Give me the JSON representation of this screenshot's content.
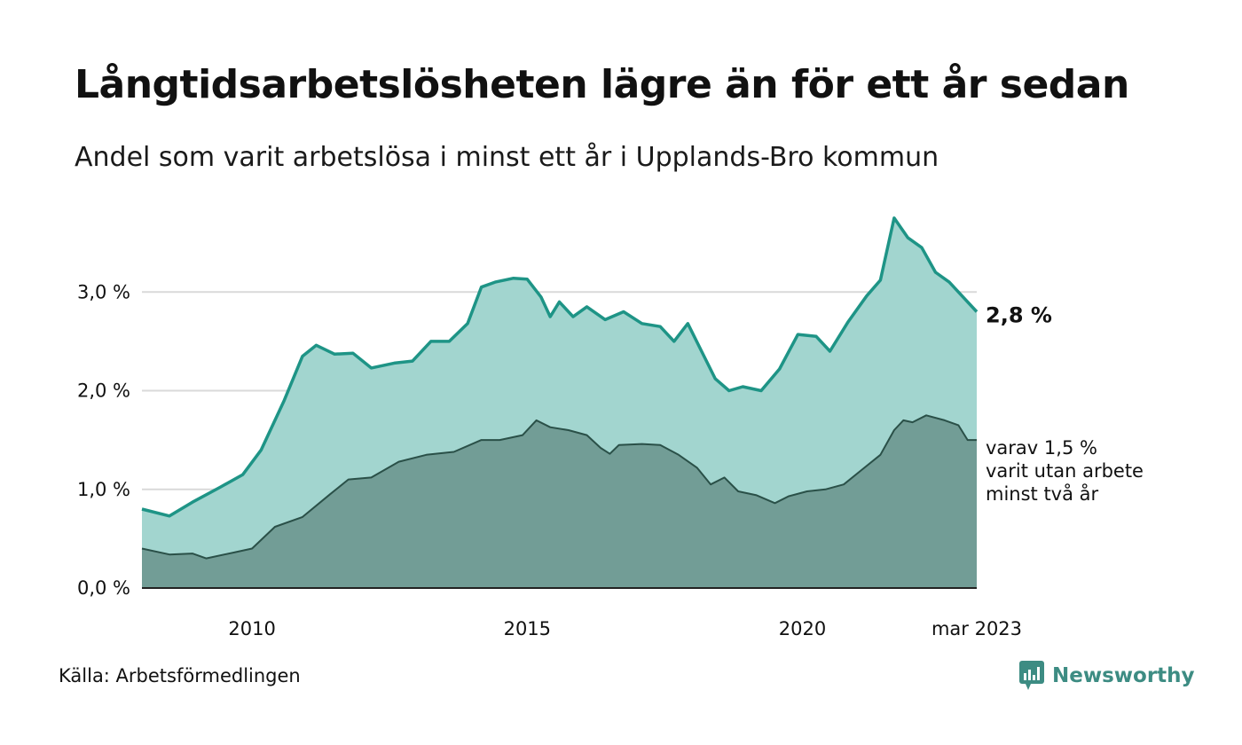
{
  "title": "Långtidsarbetslösheten lägre än för ett år sedan",
  "subtitle": "Andel som varit arbetslösa i minst ett år i Upplands-Bro kommun",
  "source": "Källa: Arbetsförmedlingen",
  "brand": "Newsworthy",
  "colors": {
    "total_line": "#1e9486",
    "total_fill": "#a2d5cf",
    "twoyear_line": "#2a5048",
    "twoyear_fill": "#729d96",
    "grid": "#d9d9d9",
    "brand": "#3d8c83"
  },
  "annotations": {
    "last_total_label": "2,8 %",
    "last_twoyear_lines": [
      "varav 1,5 %",
      "varit utan arbete",
      "minst två år"
    ]
  },
  "chart_data": {
    "type": "area",
    "xlim": [
      "2008-01",
      "2023-03"
    ],
    "ylim": [
      0,
      4
    ],
    "ytick_labels": [
      "0,0 %",
      "1,0 %",
      "2,0 %",
      "3,0 %"
    ],
    "yticks": [
      0,
      1,
      2,
      3
    ],
    "xtick_labels": [
      "2010",
      "2015",
      "2020",
      "mar 2023"
    ],
    "xticks": [
      "2010-01",
      "2015-01",
      "2020-01",
      "2023-03"
    ],
    "grid": true,
    "series": [
      {
        "key": "total",
        "points": [
          [
            "2008-01",
            0.8
          ],
          [
            "2008-07",
            0.73
          ],
          [
            "2008-12",
            0.87
          ],
          [
            "2009-06",
            1.02
          ],
          [
            "2009-11",
            1.15
          ],
          [
            "2010-03",
            1.4
          ],
          [
            "2010-08",
            1.9
          ],
          [
            "2010-12",
            2.35
          ],
          [
            "2011-03",
            2.46
          ],
          [
            "2011-07",
            2.37
          ],
          [
            "2011-11",
            2.38
          ],
          [
            "2012-03",
            2.23
          ],
          [
            "2012-08",
            2.28
          ],
          [
            "2012-12",
            2.3
          ],
          [
            "2013-04",
            2.5
          ],
          [
            "2013-08",
            2.5
          ],
          [
            "2013-12",
            2.68
          ],
          [
            "2014-03",
            3.05
          ],
          [
            "2014-06",
            3.1
          ],
          [
            "2014-10",
            3.14
          ],
          [
            "2015-01",
            3.13
          ],
          [
            "2015-04",
            2.95
          ],
          [
            "2015-06",
            2.75
          ],
          [
            "2015-08",
            2.9
          ],
          [
            "2015-11",
            2.75
          ],
          [
            "2016-02",
            2.85
          ],
          [
            "2016-06",
            2.72
          ],
          [
            "2016-10",
            2.8
          ],
          [
            "2017-02",
            2.68
          ],
          [
            "2017-06",
            2.65
          ],
          [
            "2017-09",
            2.5
          ],
          [
            "2017-12",
            2.68
          ],
          [
            "2018-03",
            2.4
          ],
          [
            "2018-06",
            2.12
          ],
          [
            "2018-09",
            2.0
          ],
          [
            "2018-12",
            2.04
          ],
          [
            "2019-04",
            2.0
          ],
          [
            "2019-08",
            2.22
          ],
          [
            "2019-12",
            2.57
          ],
          [
            "2020-04",
            2.55
          ],
          [
            "2020-07",
            2.4
          ],
          [
            "2020-11",
            2.7
          ],
          [
            "2021-03",
            2.96
          ],
          [
            "2021-06",
            3.12
          ],
          [
            "2021-09",
            3.75
          ],
          [
            "2021-12",
            3.55
          ],
          [
            "2022-03",
            3.45
          ],
          [
            "2022-06",
            3.2
          ],
          [
            "2022-09",
            3.1
          ],
          [
            "2022-12",
            2.95
          ],
          [
            "2023-03",
            2.8
          ]
        ]
      },
      {
        "key": "two_years",
        "points": [
          [
            "2008-01",
            0.4
          ],
          [
            "2008-07",
            0.34
          ],
          [
            "2008-12",
            0.35
          ],
          [
            "2009-03",
            0.3
          ],
          [
            "2009-09",
            0.36
          ],
          [
            "2010-01",
            0.4
          ],
          [
            "2010-06",
            0.62
          ],
          [
            "2010-12",
            0.72
          ],
          [
            "2011-06",
            0.95
          ],
          [
            "2011-10",
            1.1
          ],
          [
            "2012-03",
            1.12
          ],
          [
            "2012-09",
            1.28
          ],
          [
            "2013-03",
            1.35
          ],
          [
            "2013-09",
            1.38
          ],
          [
            "2014-03",
            1.5
          ],
          [
            "2014-07",
            1.5
          ],
          [
            "2014-12",
            1.55
          ],
          [
            "2015-03",
            1.7
          ],
          [
            "2015-06",
            1.63
          ],
          [
            "2015-10",
            1.6
          ],
          [
            "2016-02",
            1.55
          ],
          [
            "2016-05",
            1.42
          ],
          [
            "2016-07",
            1.36
          ],
          [
            "2016-09",
            1.45
          ],
          [
            "2017-02",
            1.46
          ],
          [
            "2017-06",
            1.45
          ],
          [
            "2017-10",
            1.35
          ],
          [
            "2018-02",
            1.22
          ],
          [
            "2018-05",
            1.05
          ],
          [
            "2018-08",
            1.12
          ],
          [
            "2018-11",
            0.98
          ],
          [
            "2019-03",
            0.94
          ],
          [
            "2019-07",
            0.86
          ],
          [
            "2019-10",
            0.93
          ],
          [
            "2020-02",
            0.98
          ],
          [
            "2020-06",
            1.0
          ],
          [
            "2020-10",
            1.05
          ],
          [
            "2021-02",
            1.2
          ],
          [
            "2021-06",
            1.35
          ],
          [
            "2021-09",
            1.6
          ],
          [
            "2021-11",
            1.7
          ],
          [
            "2022-01",
            1.68
          ],
          [
            "2022-04",
            1.75
          ],
          [
            "2022-08",
            1.7
          ],
          [
            "2022-11",
            1.65
          ],
          [
            "2023-01",
            1.5
          ],
          [
            "2023-03",
            1.5
          ]
        ]
      }
    ]
  }
}
